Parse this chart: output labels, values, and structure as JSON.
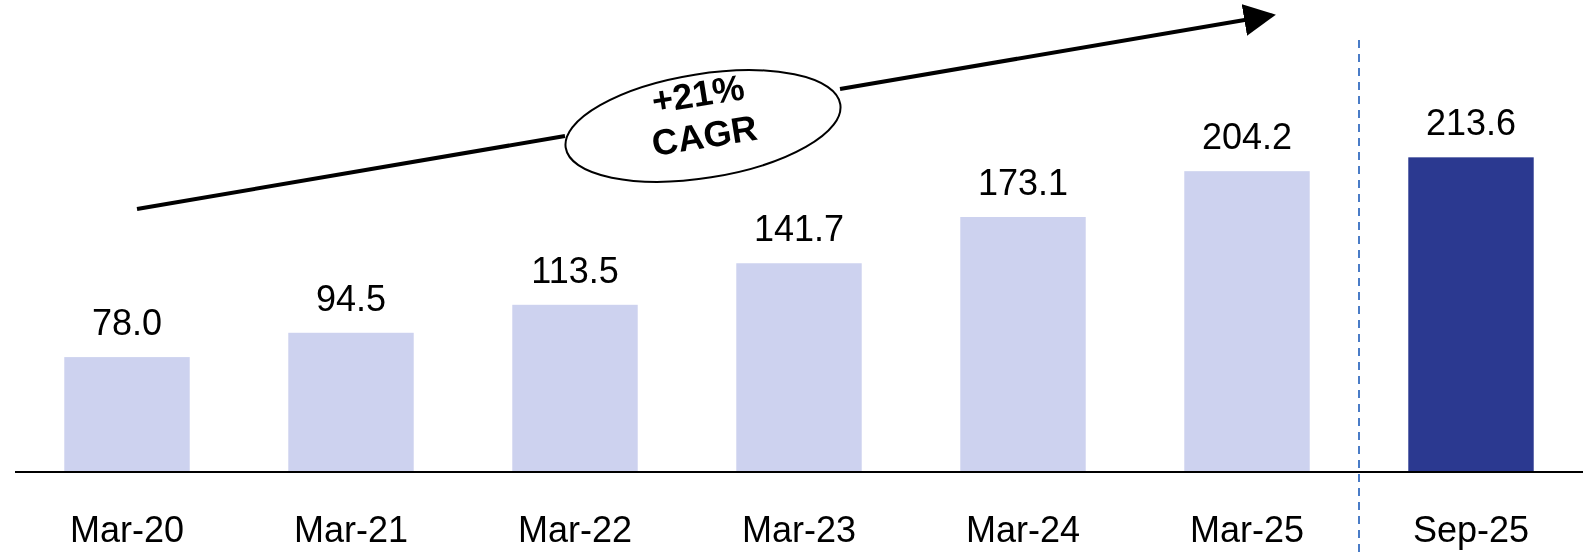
{
  "chart_data": {
    "type": "bar",
    "categories": [
      "Mar-20",
      "Mar-21",
      "Mar-22",
      "Mar-23",
      "Mar-24",
      "Mar-25",
      "Sep-25"
    ],
    "values": [
      78.0,
      94.5,
      113.5,
      141.7,
      173.1,
      204.2,
      213.6
    ],
    "value_labels": [
      "78.0",
      "94.5",
      "113.5",
      "141.7",
      "173.1",
      "204.2",
      "213.6"
    ],
    "colors": [
      "#cdd2ef",
      "#cdd2ef",
      "#cdd2ef",
      "#cdd2ef",
      "#cdd2ef",
      "#cdd2ef",
      "#2b3990"
    ],
    "annotations": [
      "+21%\nCAGR"
    ]
  }
}
